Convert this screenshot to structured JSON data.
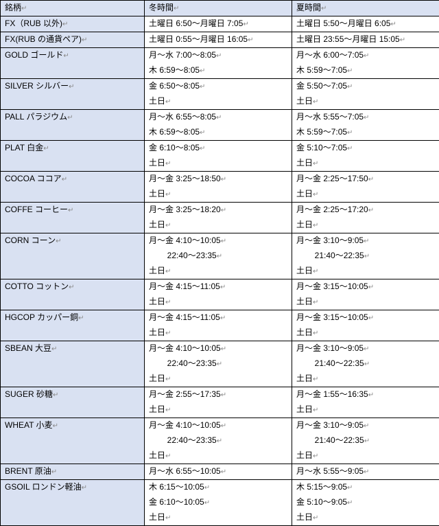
{
  "colors": {
    "headerBg": "#d9e1f2",
    "border": "#000000",
    "text": "#000000",
    "mark": "#888888"
  },
  "headers": {
    "col1": "銘柄",
    "col2": "冬時間",
    "col3": "夏時間"
  },
  "mark": "↵",
  "rows": [
    {
      "label": "FX（RUB 以外)",
      "span": 1,
      "winter": [
        "土曜日 6:50～月曜日 7:05"
      ],
      "summer": [
        "土曜日 5:50～月曜日 6:05"
      ]
    },
    {
      "label": "FX(RUB の通貨ペア)",
      "span": 1,
      "winter": [
        "土曜日 0:55～月曜日 16:05"
      ],
      "summer": [
        "土曜日 23:55～月曜日 15:05"
      ]
    },
    {
      "label": "GOLD ゴールド",
      "span": 2,
      "winter": [
        "月～水 7:00～8:05",
        "木 6:59～8:05"
      ],
      "summer": [
        "月～水 6:00～7:05",
        "木 5:59～7:05"
      ]
    },
    {
      "label": "SILVER シルバー",
      "span": 2,
      "winter": [
        "金 6:50～8:05",
        "土日"
      ],
      "summer": [
        "金 5:50～7:05",
        "土日"
      ]
    },
    {
      "label": "PALL パラジウム",
      "span": 2,
      "winter": [
        "月～水 6:55～8:05",
        "木 6:59～8:05"
      ],
      "summer": [
        "月～水 5:55～7:05",
        "木 5:59～7:05"
      ]
    },
    {
      "label": "PLAT 白金",
      "span": 2,
      "winter": [
        "金 6:10～8:05",
        "土日"
      ],
      "summer": [
        "金 5:10～7:05",
        "土日"
      ]
    },
    {
      "label": "COCOA ココア",
      "span": 2,
      "winter": [
        "月～金 3:25～18:50",
        "土日"
      ],
      "summer": [
        "月～金 2:25～17:50",
        "土日"
      ]
    },
    {
      "label": "COFFE コーヒー",
      "span": 2,
      "winter": [
        "月～金 3:25～18:20",
        "土日"
      ],
      "summer": [
        "月～金 2:25～17:20",
        "土日"
      ]
    },
    {
      "label": "CORN コーン",
      "span": 3,
      "winter": [
        "月～金 4:10～10:05",
        "        22:40～23:35",
        "土日"
      ],
      "summer": [
        "月～金 3:10～9:05",
        "        21:40～22:35",
        "土日"
      ]
    },
    {
      "label": "COTTO コットン",
      "span": 2,
      "winter": [
        "月～金 4:15～11:05",
        "土日"
      ],
      "summer": [
        "月～金 3:15～10:05",
        "土日"
      ]
    },
    {
      "label": "HGCOP カッパー銅",
      "span": 2,
      "winter": [
        "月～金 4:15～11:05",
        "土日"
      ],
      "summer": [
        "月～金 3:15～10:05",
        "土日"
      ]
    },
    {
      "label": "SBEAN 大豆",
      "span": 3,
      "winter": [
        "月～金 4:10～10:05",
        "        22:40～23:35",
        "土日"
      ],
      "summer": [
        "月～金 3:10～9:05",
        "        21:40～22:35",
        "土日"
      ]
    },
    {
      "label": "SUGER 砂糖",
      "span": 2,
      "winter": [
        "月～金 2:55～17:35",
        "土日"
      ],
      "summer": [
        "月～金 1:55～16:35",
        "土日"
      ]
    },
    {
      "label": "WHEAT 小麦",
      "span": 3,
      "winter": [
        "月～金 4:10～10:05",
        "        22:40～23:35",
        "土日"
      ],
      "summer": [
        "月～金 3:10～9:05",
        "        21:40～22:35",
        "土日"
      ]
    },
    {
      "label": "BRENT 原油",
      "span": 1,
      "winter": [
        "月～水 6:55～10:05"
      ],
      "summer": [
        "月～水 5:55～9:05"
      ]
    },
    {
      "label": "GSOIL ロンドン軽油",
      "span": 3,
      "winter": [
        "木 6:15～10:05",
        "金 6:10～10:05",
        "土日"
      ],
      "summer": [
        "木 5:15～9:05",
        "金 5:10～9:05",
        "土日"
      ]
    }
  ]
}
